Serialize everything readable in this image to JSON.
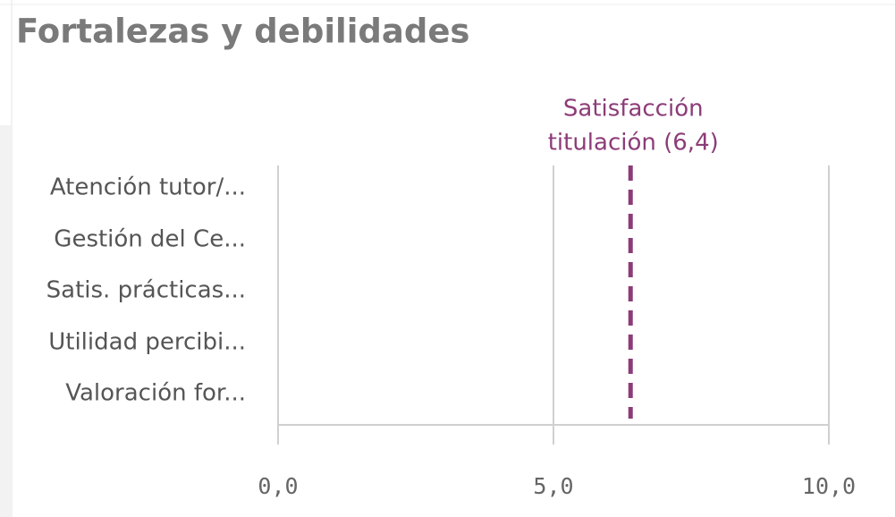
{
  "chart_data": {
    "type": "bar",
    "orientation": "horizontal",
    "title": "Fortalezas y debilidades",
    "categories": [
      "Atención tutor/...",
      "Gestión del Ce...",
      "Satis. prácticas...",
      "Utilidad percibi...",
      "Valoración for..."
    ],
    "values": [
      null,
      null,
      null,
      null,
      null
    ],
    "color": "#4477aa",
    "xlim": [
      0,
      10
    ],
    "xticks": [
      {
        "value": 0,
        "label": "0,0"
      },
      {
        "value": 5,
        "label": "5,0"
      },
      {
        "value": 10,
        "label": "10,0"
      }
    ],
    "grid": true,
    "reference_line": {
      "value": 6.4,
      "lines": [
        "Satisfacción",
        "titulación (6,4)"
      ],
      "color": "#8c3c78"
    }
  }
}
